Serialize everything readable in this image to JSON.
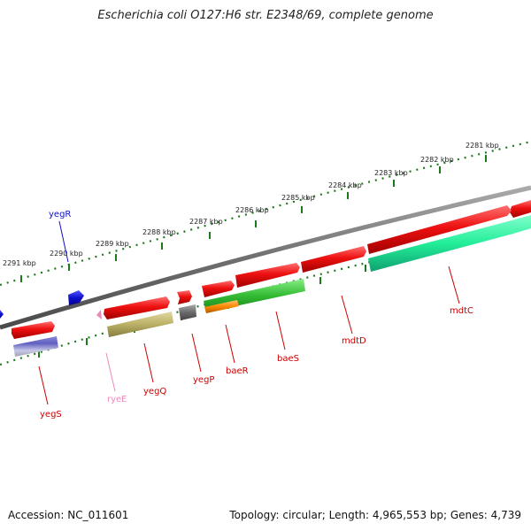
{
  "title": "Escherichia coli O127:H6 str. E2348/69, complete genome",
  "footer": {
    "accession": "Accession: NC_011601",
    "summary": "Topology: circular; Length: 4,965,553 bp; Genes: 4,739"
  },
  "colors": {
    "backbone": "#7a7a7a",
    "ticks": "#1c7a1c",
    "forward_gene": "#ee1010",
    "label_red": "#cc0000",
    "label_blue": "#1010cc",
    "label_pink": "#ee88bb"
  },
  "ticks": [
    {
      "label": "2281 kbp"
    },
    {
      "label": "2282 kbp"
    },
    {
      "label": "2283 kbp"
    },
    {
      "label": "2284 kbp"
    },
    {
      "label": "2285 kbp"
    },
    {
      "label": "2286 kbp"
    },
    {
      "label": "2287 kbp"
    },
    {
      "label": "2288 kbp"
    },
    {
      "label": "2289 kbp"
    },
    {
      "label": "2290 kbp"
    },
    {
      "label": "2291 kbp"
    }
  ],
  "genes": [
    {
      "name": "mdtC",
      "strand": "reverse",
      "color": "#22ee99",
      "label_color": "#cc0000"
    },
    {
      "name": "mdtD",
      "strand": "forward",
      "color": "#ee1010",
      "label_color": "#cc0000"
    },
    {
      "name": "baeS",
      "strand": "reverse",
      "color": "#33bb33",
      "label_color": "#cc0000"
    },
    {
      "name": "baeR",
      "strand": "reverse",
      "color": "#ff8800",
      "label_color": "#cc0000"
    },
    {
      "name": "yegP",
      "strand": "reverse",
      "color": "#777777",
      "label_color": "#cc0000"
    },
    {
      "name": "yegQ",
      "strand": "reverse",
      "color": "#bbb066",
      "label_color": "#cc0000"
    },
    {
      "name": "ryeE",
      "strand": "forward",
      "color": "#ee88bb",
      "label_color": "#ee88bb"
    },
    {
      "name": "yegS",
      "strand": "reverse",
      "color": "#7777cc",
      "label_color": "#cc0000"
    },
    {
      "name": "yegR",
      "strand": "forward",
      "color": "#1010cc",
      "label_color": "#1010cc"
    }
  ]
}
